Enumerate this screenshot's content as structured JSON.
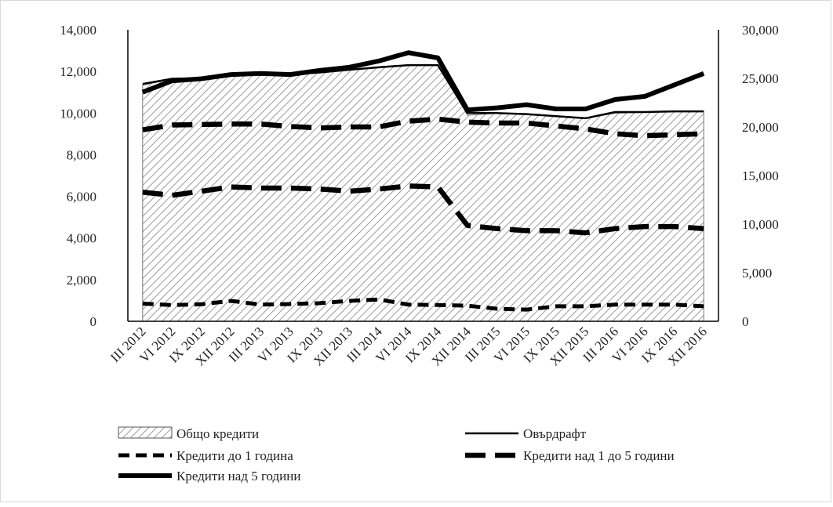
{
  "chart_data": {
    "type": "area",
    "title": "",
    "categories": [
      "III 2012",
      "VI 2012",
      "IX 2012",
      "XII 2012",
      "III 2013",
      "VI 2013",
      "IX 2013",
      "XII 2013",
      "III 2014",
      "VI 2014",
      "IX 2014",
      "XII 2014",
      "III 2015",
      "VI 2015",
      "IX 2015",
      "XII 2015",
      "III 2016",
      "VI 2016",
      "IX 2016",
      "XII 2016"
    ],
    "y_left": {
      "ylim": [
        0,
        14000
      ],
      "ticks": [
        "0",
        "2,000",
        "4,000",
        "6,000",
        "8,000",
        "10,000",
        "12,000",
        "14,000"
      ]
    },
    "y_right": {
      "ylim": [
        0,
        30000
      ],
      "ticks": [
        "0",
        "5,000",
        "10,000",
        "15,000",
        "20,000",
        "25,000",
        "30,000"
      ]
    },
    "grid": false,
    "legend_position": "bottom",
    "colors": {
      "line": "#000000",
      "area_hatch": "#9a9a9a",
      "axis": "#000000"
    },
    "series": [
      {
        "name": "Общо кредити",
        "axis": "right",
        "style": "hatched-area",
        "values": [
          24300,
          24900,
          25000,
          25400,
          25500,
          25400,
          25800,
          25900,
          26200,
          26400,
          26400,
          21200,
          21400,
          21300,
          21100,
          20900,
          21400,
          21500,
          21600,
          21600
        ]
      },
      {
        "name": "Овърдрафт",
        "axis": "left",
        "style": "solid-thin",
        "values": [
          11400,
          11650,
          11680,
          11850,
          11900,
          11860,
          11950,
          12080,
          12200,
          12300,
          12300,
          10000,
          10000,
          9950,
          9850,
          9750,
          10050,
          10050,
          10080,
          10080
        ]
      },
      {
        "name": "Кредити до 1 година",
        "axis": "left",
        "style": "dashed",
        "values": [
          850,
          780,
          820,
          980,
          800,
          830,
          870,
          980,
          1050,
          800,
          780,
          750,
          600,
          560,
          720,
          720,
          800,
          800,
          800,
          720
        ]
      },
      {
        "name": "Кредити над 1 до 5 години",
        "axis": "left",
        "style": "long-dashed",
        "values": [
          6200,
          6050,
          6250,
          6450,
          6400,
          6400,
          6350,
          6250,
          6350,
          6500,
          6450,
          4600,
          4450,
          4350,
          4350,
          4250,
          4450,
          4550,
          4550,
          4450
        ]
      },
      {
        "name": "Кредити над 5 години",
        "axis": "left",
        "style": "solid-thick",
        "values": [
          11000,
          11550,
          11650,
          11850,
          11900,
          11850,
          12050,
          12200,
          12500,
          12900,
          12650,
          10150,
          10250,
          10400,
          10200,
          10200,
          10650,
          10800,
          11350,
          11900
        ]
      }
    ],
    "second_dashed_upper": {
      "axis": "right",
      "values": [
        19700,
        20200,
        20250,
        20300,
        20300,
        20050,
        19900,
        20000,
        20000,
        20600,
        20800,
        20500,
        20400,
        20400,
        20100,
        19800,
        19300,
        19100,
        19200,
        19300
      ]
    }
  }
}
